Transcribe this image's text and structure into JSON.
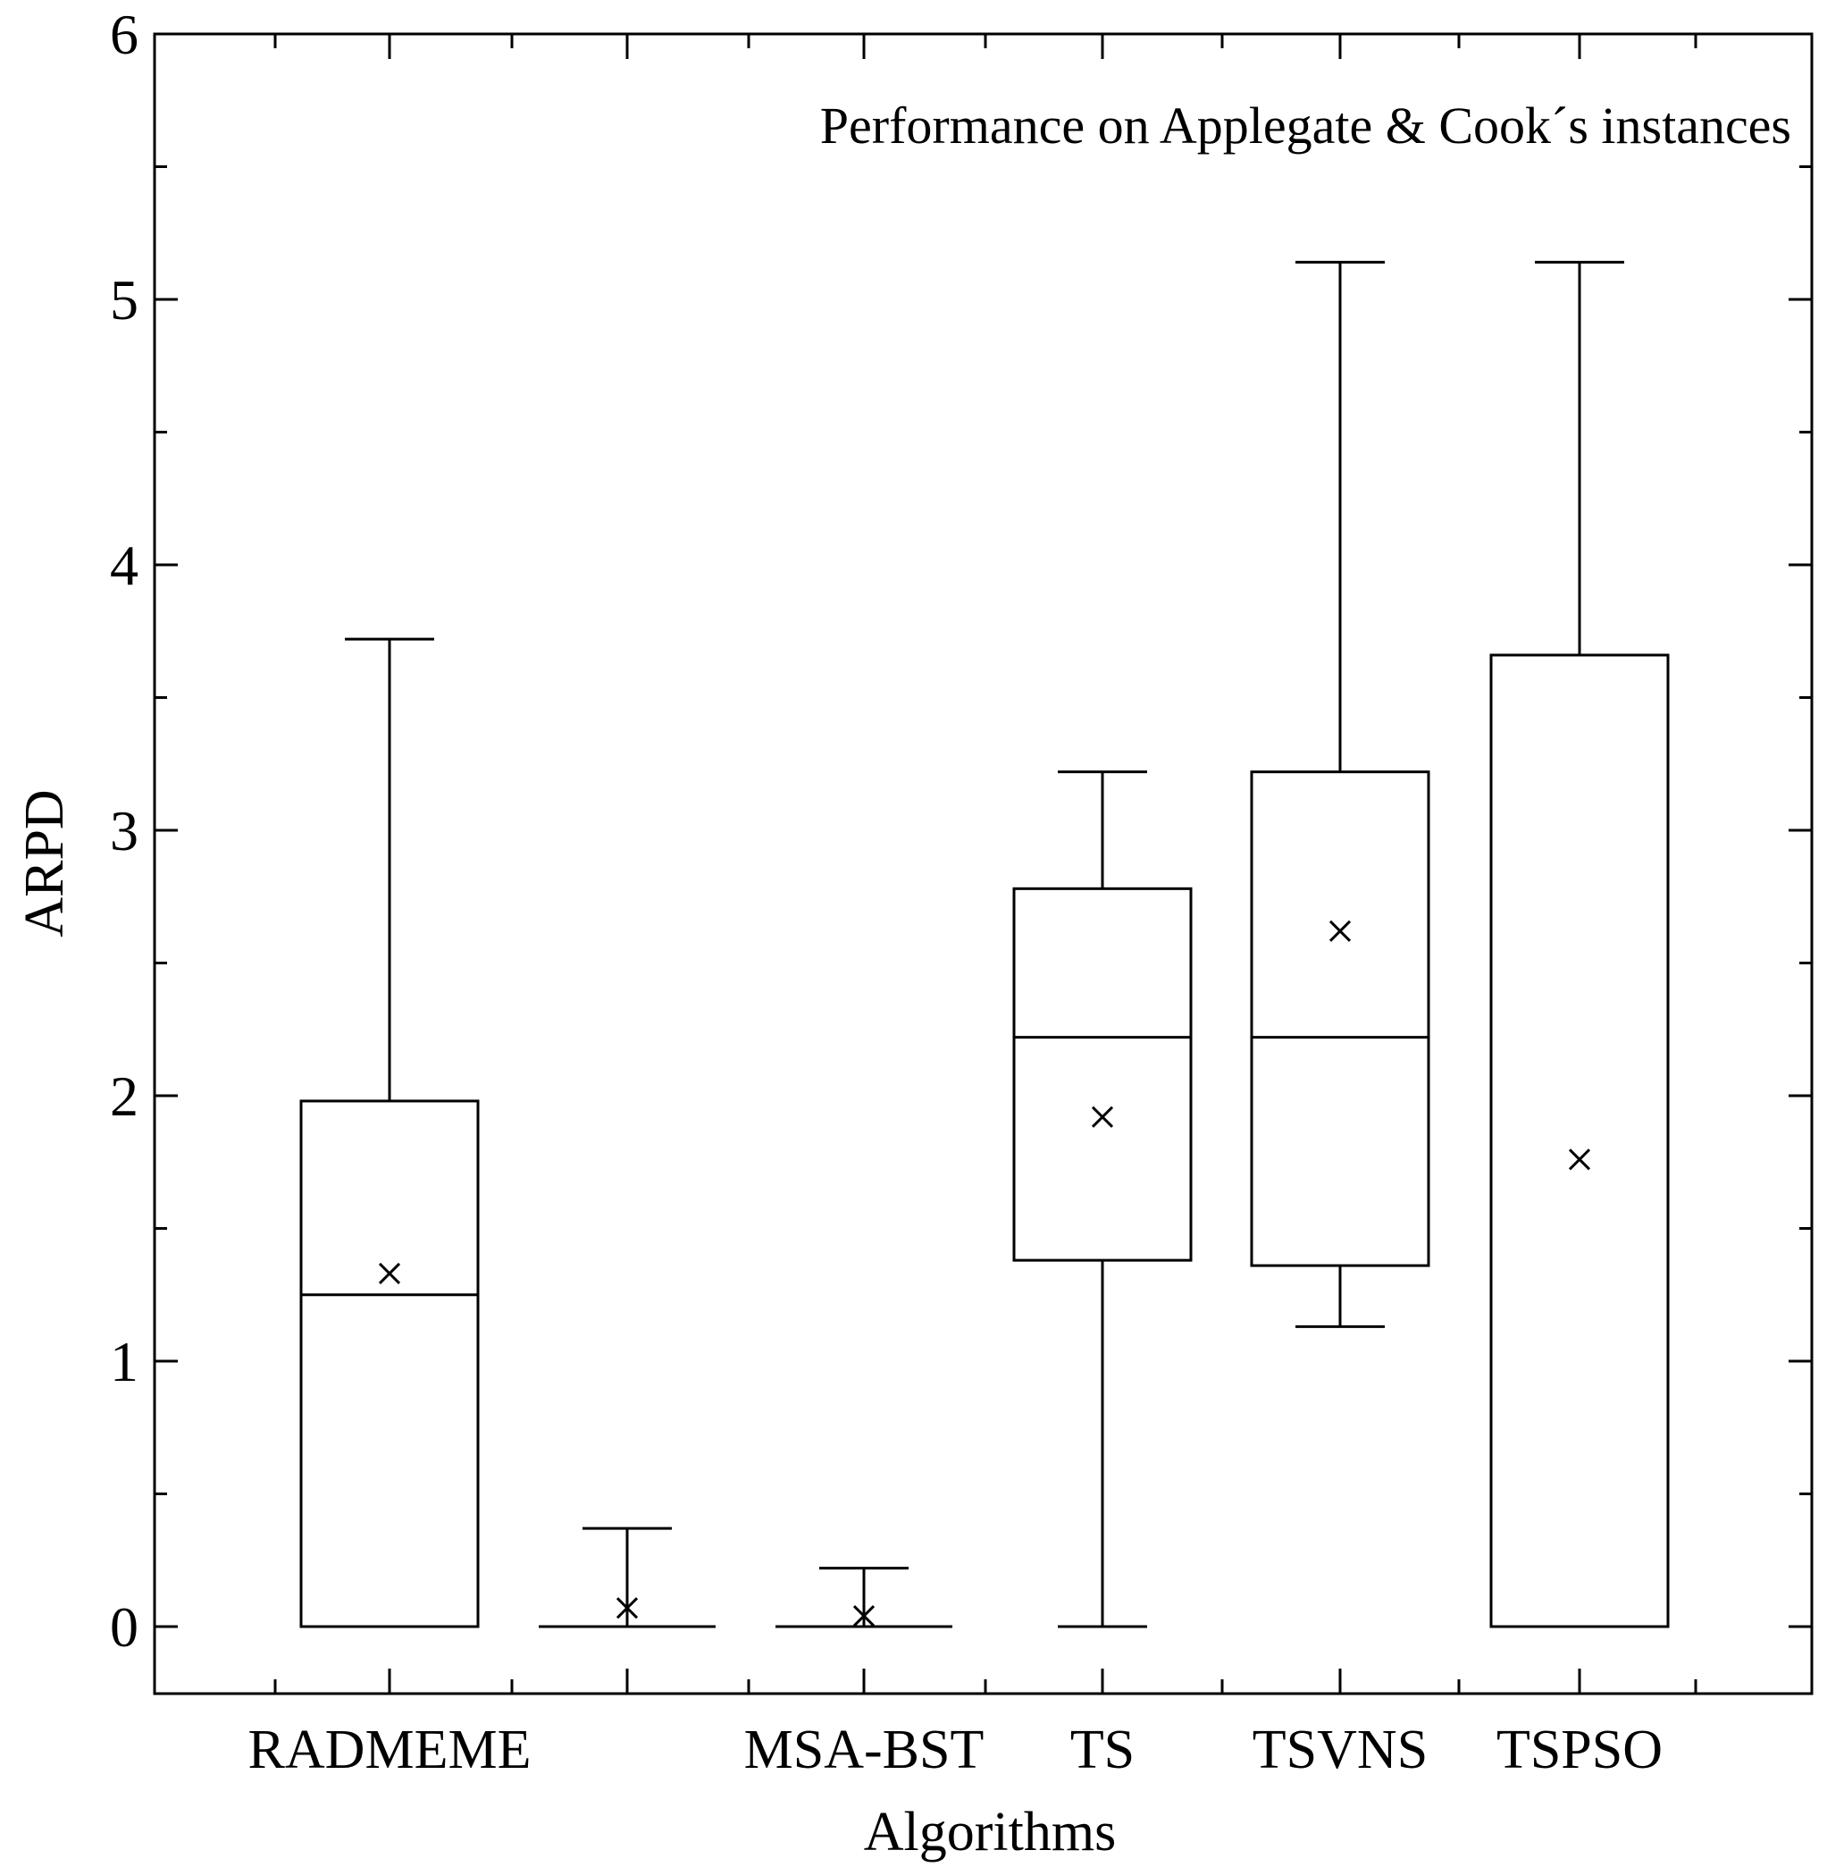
{
  "chart_data": {
    "type": "box",
    "title": "Performance on Applegate & Cook´s instances",
    "xlabel": "Algorithms",
    "ylabel": "ARPD",
    "ylim": [
      -0.25,
      6
    ],
    "yticks": [
      "0",
      "1",
      "2",
      "3",
      "4",
      "5",
      "6"
    ],
    "grid": false,
    "categories": [
      "RADMEME",
      "",
      "MSA-BST",
      "TS",
      "TSVNS",
      "TSPSO"
    ],
    "boxes": [
      {
        "category": "RADMEME",
        "min": 0,
        "q1": 0,
        "median": 1.25,
        "q3": 1.98,
        "max": 3.72,
        "mean": 1.33
      },
      {
        "category": "",
        "min": 0,
        "q1": 0,
        "median": 0,
        "q3": 0,
        "max": 0.37,
        "mean": 0.07
      },
      {
        "category": "MSA-BST",
        "min": 0,
        "q1": 0,
        "median": 0,
        "q3": 0,
        "max": 0.22,
        "mean": 0.04
      },
      {
        "category": "TS",
        "min": 0,
        "q1": 1.38,
        "median": 2.22,
        "q3": 2.78,
        "max": 3.22,
        "mean": 1.92
      },
      {
        "category": "TSVNS",
        "min": 1.13,
        "q1": 1.36,
        "median": 2.22,
        "q3": 3.22,
        "max": 5.14,
        "mean": 2.62
      },
      {
        "category": "TSPSO",
        "min": 0,
        "q1": 0,
        "median": 0,
        "q3": 3.66,
        "max": 5.14,
        "mean": 1.76
      }
    ]
  }
}
